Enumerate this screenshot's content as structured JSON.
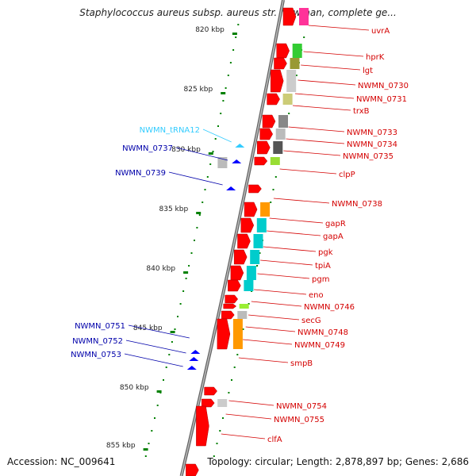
{
  "title": "Staphylococcus aureus subsp. aureus str. Newman, complete ge...",
  "accession": "Accession: NC_009641",
  "summary": "Topology: circular; Length: 2,878,897 bp; Genes: 2,686",
  "ticks": [
    "820 kbp",
    "825 kbp",
    "830 kbp",
    "835 kbp",
    "840 kbp",
    "845 kbp",
    "850 kbp",
    "855 kbp"
  ],
  "colors": {
    "gene_red": "#ff0000",
    "label_red": "#d40000",
    "label_blue": "#0000aa",
    "label_trna": "#33ccff",
    "tick_green": "#008000",
    "backbone": "#888888"
  },
  "right_labels": [
    "uvrA",
    "hprK",
    "lgt",
    "NWMN_0730",
    "NWMN_0731",
    "trxB",
    "NWMN_0733",
    "NWMN_0734",
    "NWMN_0735",
    "clpP",
    "NWMN_0738",
    "gapR",
    "gapA",
    "pgk",
    "tpiA",
    "pgm",
    "eno",
    "NWMN_0746",
    "secG",
    "NWMN_0748",
    "NWMN_0749",
    "smpB",
    "NWMN_0754",
    "NWMN_0755",
    "clfA"
  ],
  "left_labels": [
    {
      "text": "NWMN_tRNA12",
      "kind": "trna"
    },
    {
      "text": "NWMN_0737",
      "kind": "cds"
    },
    {
      "text": "NWMN_0739",
      "kind": "cds"
    },
    {
      "text": "NWMN_0751",
      "kind": "cds"
    },
    {
      "text": "NWMN_0752",
      "kind": "cds"
    },
    {
      "text": "NWMN_0753",
      "kind": "cds"
    }
  ]
}
